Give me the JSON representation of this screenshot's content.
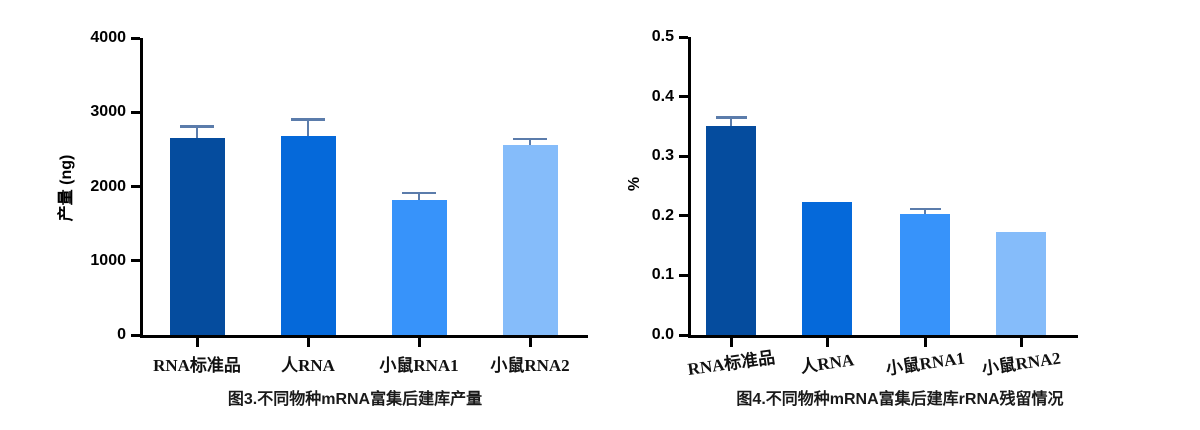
{
  "palette": {
    "bar_colors": [
      "#054c9e",
      "#0569da",
      "#3793fa",
      "#85bcfa"
    ],
    "error_bar_color": "#5b7cab",
    "axis_color": "#000000",
    "caption_color": "#1a1a1a"
  },
  "chart_data": [
    {
      "id": "fig3",
      "type": "bar",
      "title": "图3.不同物种mRNA富集后建库产量",
      "ylabel": "产量 (ng)",
      "xlabel": "",
      "categories": [
        "RNA标准品",
        "人RNA",
        "小鼠RNA1",
        "小鼠RNA2"
      ],
      "values": [
        2650,
        2680,
        1820,
        2560
      ],
      "errors_plus": [
        160,
        220,
        90,
        80
      ],
      "ylim": [
        0,
        4000
      ],
      "yticks": [
        0,
        1000,
        2000,
        3000,
        4000
      ],
      "ytick_labels": [
        "0",
        "1000",
        "2000",
        "3000",
        "4000"
      ],
      "grid": false,
      "legend": false
    },
    {
      "id": "fig4",
      "type": "bar",
      "title": "图4.不同物种mRNA富集后建库rRNA残留情况",
      "ylabel": "%",
      "xlabel": "",
      "categories": [
        "RNA标准品",
        "人RNA",
        "小鼠RNA1",
        "小鼠RNA2"
      ],
      "values": [
        0.35,
        0.223,
        0.203,
        0.173
      ],
      "errors_plus": [
        0.015,
        0,
        0.008,
        0
      ],
      "ylim": [
        0,
        0.5
      ],
      "yticks": [
        0,
        0.1,
        0.2,
        0.3,
        0.4,
        0.5
      ],
      "ytick_labels": [
        "0.0",
        "0.1",
        "0.2",
        "0.3",
        "0.4",
        "0.5"
      ],
      "grid": false,
      "legend": false
    }
  ]
}
